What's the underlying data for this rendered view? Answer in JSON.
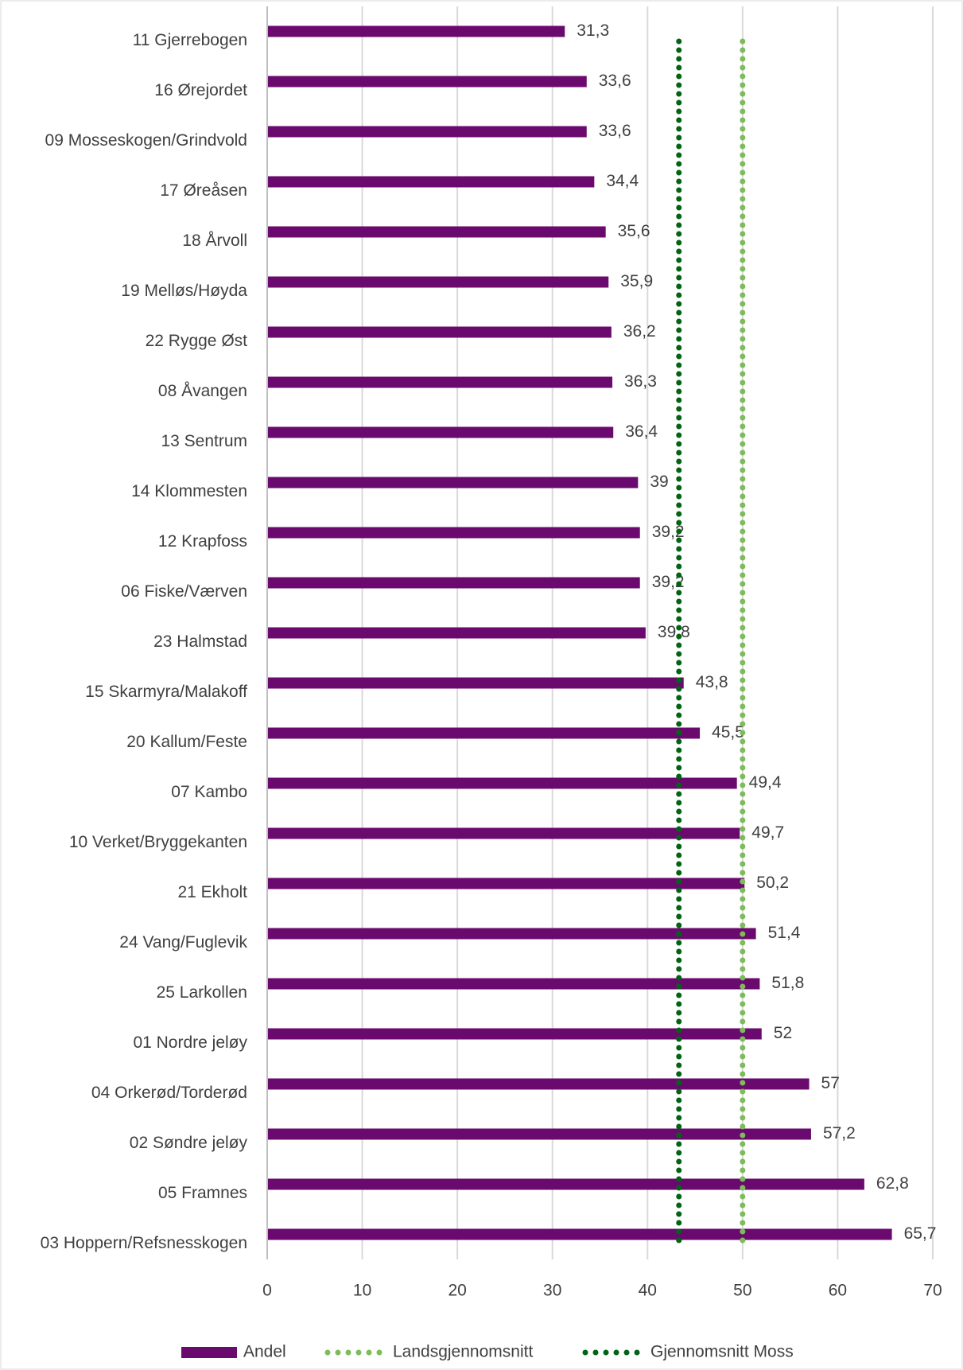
{
  "chart_data": {
    "type": "hbar",
    "categories": [
      "11 Gjerrebogen",
      "16 Ørejordet",
      "09 Mosseskogen/Grindvold",
      "17 Øreåsen",
      "18 Årvoll",
      "19 Melløs/Høyda",
      "22 Rygge Øst",
      "08 Åvangen",
      "13 Sentrum",
      "14 Klommesten",
      "12 Krapfoss",
      "06 Fiske/Værven",
      "23 Halmstad",
      "15 Skarmyra/Malakoff",
      "20 Kallum/Feste",
      "07 Kambo",
      "10 Verket/Bryggekanten",
      "21 Ekholt",
      "24 Vang/Fuglevik",
      "25 Larkollen",
      "01 Nordre jeløy",
      "04 Orkerød/Torderød",
      "02 Søndre jeløy",
      "05 Framnes",
      "03 Hoppern/Refsnesskogen"
    ],
    "series": [
      {
        "name": "Andel",
        "color": "#6b0a6e",
        "values": [
          31.3,
          33.6,
          33.6,
          34.4,
          35.6,
          35.9,
          36.2,
          36.3,
          36.4,
          39,
          39.2,
          39.2,
          39.8,
          43.8,
          45.5,
          49.4,
          49.7,
          50.2,
          51.4,
          51.8,
          52,
          57,
          57.2,
          62.8,
          65.7
        ],
        "value_labels": [
          "31,3",
          "33,6",
          "33,6",
          "34,4",
          "35,6",
          "35,9",
          "36,2",
          "36,3",
          "36,4",
          "39",
          "39,2",
          "39,2",
          "39,8",
          "43,8",
          "45,5",
          "49,4",
          "49,7",
          "50,2",
          "51,4",
          "51,8",
          "52",
          "57",
          "57,2",
          "62,8",
          "65,7"
        ]
      }
    ],
    "reference_lines": [
      {
        "name": "Landsgjennomsnitt",
        "color": "#7cbc5a",
        "value": 50
      },
      {
        "name": "Gjennomsnitt Moss",
        "color": "#006414",
        "value": 43.3
      }
    ],
    "xlim": [
      0,
      70
    ],
    "xticks": [
      0,
      10,
      20,
      30,
      40,
      50,
      60,
      70
    ],
    "grid": true,
    "legend": "bottom"
  }
}
